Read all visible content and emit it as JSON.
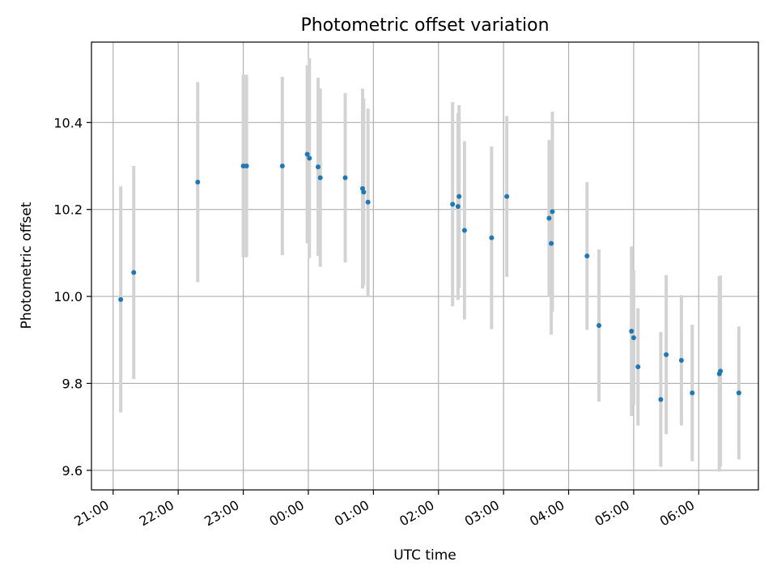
{
  "chart_data": {
    "type": "scatter",
    "title": "Photometric offset variation",
    "xlabel": "UTC time",
    "ylabel": "Photometric offset",
    "x_axis_type": "time",
    "xlim": [
      "2023-01-01T20:40",
      "2023-01-02T06:55"
    ],
    "ylim": [
      9.555,
      10.585
    ],
    "xticks": [
      {
        "t": "2023-01-01T21:00",
        "label": "21:00"
      },
      {
        "t": "2023-01-01T22:00",
        "label": "22:00"
      },
      {
        "t": "2023-01-01T23:00",
        "label": "23:00"
      },
      {
        "t": "2023-01-02T00:00",
        "label": "00:00"
      },
      {
        "t": "2023-01-02T01:00",
        "label": "01:00"
      },
      {
        "t": "2023-01-02T02:00",
        "label": "02:00"
      },
      {
        "t": "2023-01-02T03:00",
        "label": "03:00"
      },
      {
        "t": "2023-01-02T04:00",
        "label": "04:00"
      },
      {
        "t": "2023-01-02T05:00",
        "label": "05:00"
      },
      {
        "t": "2023-01-02T06:00",
        "label": "06:00"
      }
    ],
    "yticks": [
      {
        "v": 9.6,
        "label": "9.6"
      },
      {
        "v": 9.8,
        "label": "9.8"
      },
      {
        "v": 10.0,
        "label": "10.0"
      },
      {
        "v": 10.2,
        "label": "10.2"
      },
      {
        "v": 10.4,
        "label": "10.4"
      }
    ],
    "grid": true,
    "point_color": "#1f77b4",
    "errorbar_color": "#d3d3d3",
    "points": [
      {
        "t": "2023-01-01T21:07",
        "y": 9.993,
        "err": 0.26
      },
      {
        "t": "2023-01-01T21:19",
        "y": 10.055,
        "err": 0.245
      },
      {
        "t": "2023-01-01T22:18",
        "y": 10.263,
        "err": 0.23
      },
      {
        "t": "2023-01-01T23:00",
        "y": 10.3,
        "err": 0.21
      },
      {
        "t": "2023-01-01T23:03",
        "y": 10.3,
        "err": 0.21
      },
      {
        "t": "2023-01-01T23:36",
        "y": 10.3,
        "err": 0.205
      },
      {
        "t": "2023-01-01T23:59",
        "y": 10.327,
        "err": 0.205
      },
      {
        "t": "2023-01-02T00:01",
        "y": 10.318,
        "err": 0.23
      },
      {
        "t": "2023-01-02T00:09",
        "y": 10.298,
        "err": 0.205
      },
      {
        "t": "2023-01-02T00:11",
        "y": 10.273,
        "err": 0.205
      },
      {
        "t": "2023-01-02T00:34",
        "y": 10.273,
        "err": 0.195
      },
      {
        "t": "2023-01-02T00:50",
        "y": 10.248,
        "err": 0.23
      },
      {
        "t": "2023-01-02T00:51",
        "y": 10.24,
        "err": 0.215
      },
      {
        "t": "2023-01-02T00:55",
        "y": 10.217,
        "err": 0.215
      },
      {
        "t": "2023-01-02T02:13",
        "y": 10.212,
        "err": 0.235
      },
      {
        "t": "2023-01-02T02:18",
        "y": 10.207,
        "err": 0.215
      },
      {
        "t": "2023-01-02T02:19",
        "y": 10.23,
        "err": 0.21
      },
      {
        "t": "2023-01-02T02:24",
        "y": 10.152,
        "err": 0.205
      },
      {
        "t": "2023-01-02T02:49",
        "y": 10.135,
        "err": 0.21
      },
      {
        "t": "2023-01-02T03:03",
        "y": 10.23,
        "err": 0.185
      },
      {
        "t": "2023-01-02T03:42",
        "y": 10.18,
        "err": 0.18
      },
      {
        "t": "2023-01-02T03:44",
        "y": 10.122,
        "err": 0.21
      },
      {
        "t": "2023-01-02T03:45",
        "y": 10.195,
        "err": 0.23
      },
      {
        "t": "2023-01-02T04:17",
        "y": 10.093,
        "err": 0.17
      },
      {
        "t": "2023-01-02T04:28",
        "y": 9.933,
        "err": 0.175
      },
      {
        "t": "2023-01-02T04:58",
        "y": 9.92,
        "err": 0.195
      },
      {
        "t": "2023-01-02T05:00",
        "y": 9.905,
        "err": 0.155
      },
      {
        "t": "2023-01-02T05:04",
        "y": 9.838,
        "err": 0.135
      },
      {
        "t": "2023-01-02T05:25",
        "y": 9.763,
        "err": 0.155
      },
      {
        "t": "2023-01-02T05:30",
        "y": 9.866,
        "err": 0.183
      },
      {
        "t": "2023-01-02T05:44",
        "y": 9.853,
        "err": 0.15
      },
      {
        "t": "2023-01-02T05:54",
        "y": 9.778,
        "err": 0.157
      },
      {
        "t": "2023-01-02T06:19",
        "y": 9.822,
        "err": 0.225
      },
      {
        "t": "2023-01-02T06:20",
        "y": 9.828,
        "err": 0.22
      },
      {
        "t": "2023-01-02T06:37",
        "y": 9.778,
        "err": 0.153
      }
    ]
  }
}
